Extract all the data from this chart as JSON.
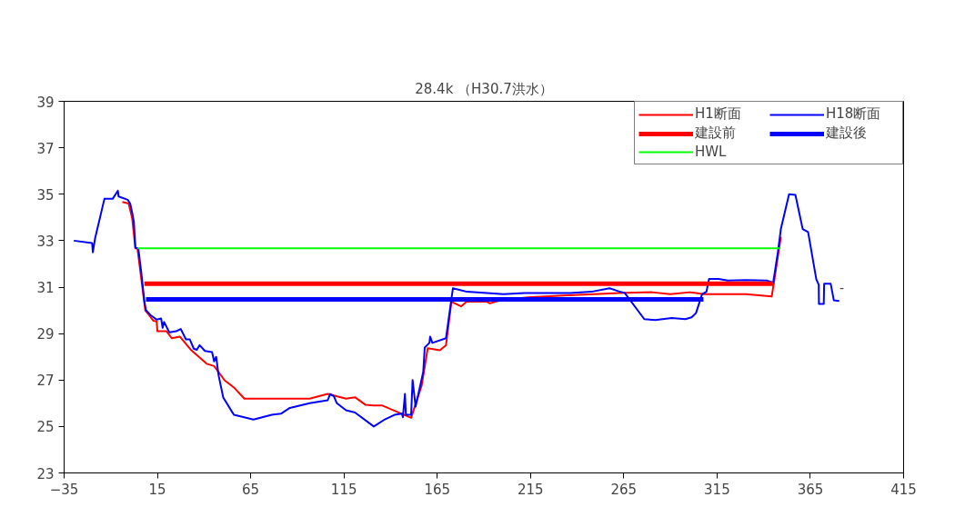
{
  "chart_data": {
    "type": "line",
    "title": "28.4k （H30.7洪水）",
    "xlim": [
      -35,
      415
    ],
    "xticks": [
      -35,
      15,
      65,
      115,
      165,
      215,
      265,
      315,
      365,
      415
    ],
    "ylim": [
      23,
      39
    ],
    "yticks": [
      23,
      25,
      27,
      29,
      31,
      33,
      35,
      37,
      39
    ],
    "grid": false,
    "legend": "top right",
    "marker": "none",
    "line_style": "solid",
    "annotations": [
      "-"
    ],
    "series": [
      {
        "name": "H1断面",
        "color": "#ff0000",
        "x": [
          -3.8,
          -0.4,
          1.5,
          3.2,
          4.3,
          8.5,
          10.5,
          12.9,
          14.6,
          15.0,
          19.9,
          22.7,
          27.0,
          33.2,
          41.4,
          45.4,
          51.1,
          56.0,
          61.6,
          96.6,
          106.3,
          116.1,
          120.9,
          126.6,
          130.7,
          135.6,
          151.0,
          156.7,
          159.9,
          166.4,
          169.7,
          172.6,
          177.8,
          180.7,
          191.6,
          193.2,
          198.9,
          213.5,
          229.8,
          249.3,
          262.3,
          280.1,
          289.9,
          300.4,
          307.7,
          330.5,
          344.3,
          345.5,
          349.2
        ],
        "values": [
          34.67,
          34.6,
          33.95,
          32.67,
          32.67,
          30.0,
          29.8,
          29.55,
          29.52,
          29.1,
          29.1,
          28.8,
          28.87,
          28.28,
          27.7,
          27.6,
          26.98,
          26.68,
          26.2,
          26.2,
          26.4,
          26.2,
          26.26,
          25.93,
          25.9,
          25.9,
          25.37,
          26.78,
          28.37,
          28.28,
          28.5,
          30.37,
          30.17,
          30.37,
          30.37,
          30.3,
          30.43,
          30.56,
          30.63,
          30.7,
          30.75,
          30.78,
          30.7,
          30.78,
          30.7,
          30.7,
          30.6,
          31.2,
          33.17
        ]
      },
      {
        "name": "H18断面",
        "color": "#0000ff",
        "x": [
          -29.8,
          -20.0,
          -19.6,
          -18.4,
          -13.4,
          -9.0,
          -6.2,
          -5.8,
          -0.9,
          0.4,
          1.5,
          2.4,
          3.2,
          4.8,
          6.4,
          8.0,
          8.9,
          11.3,
          14.6,
          17.0,
          17.8,
          18.6,
          21.4,
          25.1,
          27.5,
          30.3,
          32.4,
          34.5,
          36.1,
          37.6,
          40.5,
          44.3,
          45.4,
          46.5,
          47.8,
          50.3,
          56.0,
          66.5,
          76.3,
          81.2,
          86.0,
          96.6,
          106.3,
          107.6,
          109.6,
          111.2,
          116.1,
          120.9,
          131.0,
          136.4,
          142.1,
          146.1,
          146.6,
          147.7,
          148.2,
          151.0,
          151.8,
          153.4,
          157.5,
          158.3,
          160.8,
          161.2,
          162.4,
          169.7,
          173.4,
          181.0,
          200.5,
          211.9,
          236.3,
          247.6,
          257.4,
          262.3,
          265.5,
          276.0,
          281.8,
          290.7,
          298.0,
          301.3,
          303.7,
          307.0,
          309.3,
          310.7,
          315.9,
          320.7,
          330.5,
          341.9,
          345.1,
          347.6,
          349.2,
          353.6,
          357.0,
          360.9,
          363.8,
          368.2,
          369.5,
          369.6,
          372.2,
          372.4,
          375.9,
          377.6,
          380.5
        ],
        "values": [
          33.0,
          32.9,
          32.5,
          33.1,
          34.8,
          34.8,
          35.15,
          34.9,
          34.76,
          34.6,
          34.2,
          33.8,
          32.7,
          32.65,
          31.6,
          30.4,
          30.0,
          29.8,
          29.6,
          29.65,
          29.25,
          29.5,
          29.05,
          29.1,
          29.2,
          28.75,
          28.75,
          28.35,
          28.3,
          28.5,
          28.25,
          28.2,
          27.8,
          28.0,
          27.2,
          26.25,
          25.5,
          25.3,
          25.5,
          25.55,
          25.8,
          26.0,
          26.13,
          26.4,
          26.3,
          26.0,
          25.7,
          25.6,
          25.0,
          25.28,
          25.5,
          25.55,
          25.4,
          26.4,
          25.5,
          25.5,
          27.0,
          25.85,
          27.35,
          28.4,
          28.6,
          28.87,
          28.6,
          28.8,
          30.95,
          30.8,
          30.7,
          30.75,
          30.75,
          30.8,
          30.95,
          30.82,
          30.75,
          29.62,
          29.58,
          29.67,
          29.62,
          29.7,
          29.88,
          30.7,
          30.8,
          31.35,
          31.35,
          31.28,
          31.3,
          31.28,
          31.2,
          32.5,
          33.5,
          35.0,
          34.97,
          33.5,
          33.37,
          31.34,
          31.1,
          30.28,
          30.28,
          31.15,
          31.15,
          30.43,
          30.4
        ]
      },
      {
        "name": "建設前",
        "color": "#ff0000",
        "x": [
          8.0,
          345.1
        ],
        "values": [
          31.15,
          31.15
        ]
      },
      {
        "name": "建設後",
        "color": "#0000ff",
        "x": [
          8.9,
          307.7
        ],
        "values": [
          30.47,
          30.47
        ]
      },
      {
        "name": "HWL",
        "color": "#00ff00",
        "x": [
          4.3,
          348.7
        ],
        "values": [
          32.67,
          32.67
        ]
      }
    ]
  }
}
